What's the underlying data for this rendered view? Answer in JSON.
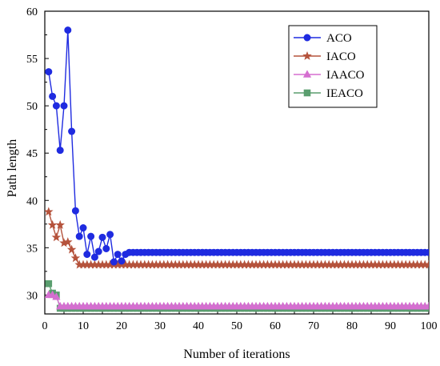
{
  "chart_data": {
    "type": "line",
    "title": "",
    "xlabel": "Number of iterations",
    "ylabel": "Path length",
    "xlim": [
      0,
      100
    ],
    "ylim": [
      28,
      60
    ],
    "xticks": [
      0,
      10,
      20,
      30,
      40,
      50,
      60,
      70,
      80,
      90,
      100
    ],
    "yticks": [
      30,
      35,
      40,
      45,
      50,
      55,
      60
    ],
    "grid": false,
    "legend": "top-right",
    "series": [
      {
        "name": "ACO",
        "color": "#1f2be0",
        "marker": "circle",
        "x": [
          1,
          2,
          3,
          4,
          5,
          6,
          7,
          8,
          9,
          10,
          11,
          12,
          13,
          14,
          15,
          16,
          17,
          18,
          19,
          20,
          21,
          22,
          23,
          24,
          25,
          26,
          27,
          28,
          29,
          30,
          31,
          32,
          33,
          34,
          35,
          36,
          37,
          38,
          39,
          40,
          41,
          42,
          43,
          44,
          45,
          46,
          47,
          48,
          49,
          50,
          51,
          52,
          53,
          54,
          55,
          56,
          57,
          58,
          59,
          60,
          61,
          62,
          63,
          64,
          65,
          66,
          67,
          68,
          69,
          70,
          71,
          72,
          73,
          74,
          75,
          76,
          77,
          78,
          79,
          80,
          81,
          82,
          83,
          84,
          85,
          86,
          87,
          88,
          89,
          90,
          91,
          92,
          93,
          94,
          95,
          96,
          97,
          98,
          99,
          100
        ],
        "y": [
          53.6,
          51.0,
          50.0,
          45.3,
          50.0,
          58.0,
          47.3,
          38.9,
          36.2,
          37.1,
          34.3,
          36.2,
          34.0,
          34.6,
          36.1,
          34.9,
          36.4,
          33.5,
          34.3,
          33.6,
          34.3,
          34.5,
          34.5,
          34.5,
          34.5,
          34.5,
          34.5,
          34.5,
          34.5,
          34.5,
          34.5,
          34.5,
          34.5,
          34.5,
          34.5,
          34.5,
          34.5,
          34.5,
          34.5,
          34.5,
          34.5,
          34.5,
          34.5,
          34.5,
          34.5,
          34.5,
          34.5,
          34.5,
          34.5,
          34.5,
          34.5,
          34.5,
          34.5,
          34.5,
          34.5,
          34.5,
          34.5,
          34.5,
          34.5,
          34.5,
          34.5,
          34.5,
          34.5,
          34.5,
          34.5,
          34.5,
          34.5,
          34.5,
          34.5,
          34.5,
          34.5,
          34.5,
          34.5,
          34.5,
          34.5,
          34.5,
          34.5,
          34.5,
          34.5,
          34.5,
          34.5,
          34.5,
          34.5,
          34.5,
          34.5,
          34.5,
          34.5,
          34.5,
          34.5,
          34.5,
          34.5,
          34.5,
          34.5,
          34.5,
          34.5,
          34.5,
          34.5,
          34.5,
          34.5,
          34.5
        ]
      },
      {
        "name": "IACO",
        "color": "#b5533c",
        "marker": "star",
        "x": [
          1,
          2,
          3,
          4,
          5,
          6,
          7,
          8,
          9,
          10,
          11,
          12,
          13,
          14,
          15,
          16,
          17,
          18,
          19,
          20,
          21,
          22,
          23,
          24,
          25,
          26,
          27,
          28,
          29,
          30,
          31,
          32,
          33,
          34,
          35,
          36,
          37,
          38,
          39,
          40,
          41,
          42,
          43,
          44,
          45,
          46,
          47,
          48,
          49,
          50,
          51,
          52,
          53,
          54,
          55,
          56,
          57,
          58,
          59,
          60,
          61,
          62,
          63,
          64,
          65,
          66,
          67,
          68,
          69,
          70,
          71,
          72,
          73,
          74,
          75,
          76,
          77,
          78,
          79,
          80,
          81,
          82,
          83,
          84,
          85,
          86,
          87,
          88,
          89,
          90,
          91,
          92,
          93,
          94,
          95,
          96,
          97,
          98,
          99,
          100
        ],
        "y": [
          38.8,
          37.4,
          36.1,
          37.4,
          35.5,
          35.6,
          34.8,
          33.9,
          33.2,
          33.2,
          33.2,
          33.2,
          33.2,
          33.2,
          33.2,
          33.2,
          33.2,
          33.2,
          33.2,
          33.2,
          33.2,
          33.2,
          33.2,
          33.2,
          33.2,
          33.2,
          33.2,
          33.2,
          33.2,
          33.2,
          33.2,
          33.2,
          33.2,
          33.2,
          33.2,
          33.2,
          33.2,
          33.2,
          33.2,
          33.2,
          33.2,
          33.2,
          33.2,
          33.2,
          33.2,
          33.2,
          33.2,
          33.2,
          33.2,
          33.2,
          33.2,
          33.2,
          33.2,
          33.2,
          33.2,
          33.2,
          33.2,
          33.2,
          33.2,
          33.2,
          33.2,
          33.2,
          33.2,
          33.2,
          33.2,
          33.2,
          33.2,
          33.2,
          33.2,
          33.2,
          33.2,
          33.2,
          33.2,
          33.2,
          33.2,
          33.2,
          33.2,
          33.2,
          33.2,
          33.2,
          33.2,
          33.2,
          33.2,
          33.2,
          33.2,
          33.2,
          33.2,
          33.2,
          33.2,
          33.2,
          33.2,
          33.2,
          33.2,
          33.2,
          33.2,
          33.2,
          33.2,
          33.2,
          33.2,
          33.2
        ]
      },
      {
        "name": "IAACO",
        "color": "#d56fd0",
        "marker": "triangle",
        "x": [
          1,
          2,
          3,
          4,
          5,
          6,
          7,
          8,
          9,
          10,
          11,
          12,
          13,
          14,
          15,
          16,
          17,
          18,
          19,
          20,
          21,
          22,
          23,
          24,
          25,
          26,
          27,
          28,
          29,
          30,
          31,
          32,
          33,
          34,
          35,
          36,
          37,
          38,
          39,
          40,
          41,
          42,
          43,
          44,
          45,
          46,
          47,
          48,
          49,
          50,
          51,
          52,
          53,
          54,
          55,
          56,
          57,
          58,
          59,
          60,
          61,
          62,
          63,
          64,
          65,
          66,
          67,
          68,
          69,
          70,
          71,
          72,
          73,
          74,
          75,
          76,
          77,
          78,
          79,
          80,
          81,
          82,
          83,
          84,
          85,
          86,
          87,
          88,
          89,
          90,
          91,
          92,
          93,
          94,
          95,
          96,
          97,
          98,
          99,
          100
        ],
        "y": [
          30.0,
          30.0,
          29.8,
          28.8,
          28.8,
          28.8,
          28.8,
          28.8,
          28.8,
          28.8,
          28.8,
          28.8,
          28.8,
          28.8,
          28.8,
          28.8,
          28.8,
          28.8,
          28.8,
          28.8,
          28.8,
          28.8,
          28.8,
          28.8,
          28.8,
          28.8,
          28.8,
          28.8,
          28.8,
          28.8,
          28.8,
          28.8,
          28.8,
          28.8,
          28.8,
          28.8,
          28.8,
          28.8,
          28.8,
          28.8,
          28.8,
          28.8,
          28.8,
          28.8,
          28.8,
          28.8,
          28.8,
          28.8,
          28.8,
          28.8,
          28.8,
          28.8,
          28.8,
          28.8,
          28.8,
          28.8,
          28.8,
          28.8,
          28.8,
          28.8,
          28.8,
          28.8,
          28.8,
          28.8,
          28.8,
          28.8,
          28.8,
          28.8,
          28.8,
          28.8,
          28.8,
          28.8,
          28.8,
          28.8,
          28.8,
          28.8,
          28.8,
          28.8,
          28.8,
          28.8,
          28.8,
          28.8,
          28.8,
          28.8,
          28.8,
          28.8,
          28.8,
          28.8,
          28.8,
          28.8,
          28.8,
          28.8,
          28.8,
          28.8,
          28.8,
          28.8,
          28.8,
          28.8,
          28.8,
          28.8
        ]
      },
      {
        "name": "IEACO",
        "color": "#5a9e6f",
        "marker": "square",
        "x": [
          1,
          2,
          3,
          4,
          5,
          6,
          7,
          8,
          9,
          10,
          11,
          12,
          13,
          14,
          15,
          16,
          17,
          18,
          19,
          20,
          21,
          22,
          23,
          24,
          25,
          26,
          27,
          28,
          29,
          30,
          31,
          32,
          33,
          34,
          35,
          36,
          37,
          38,
          39,
          40,
          41,
          42,
          43,
          44,
          45,
          46,
          47,
          48,
          49,
          50,
          51,
          52,
          53,
          54,
          55,
          56,
          57,
          58,
          59,
          60,
          61,
          62,
          63,
          64,
          65,
          66,
          67,
          68,
          69,
          70,
          71,
          72,
          73,
          74,
          75,
          76,
          77,
          78,
          79,
          80,
          81,
          82,
          83,
          84,
          85,
          86,
          87,
          88,
          89,
          90,
          91,
          92,
          93,
          94,
          95,
          96,
          97,
          98,
          99,
          100
        ],
        "y": [
          31.2,
          30.2,
          30.0,
          28.6,
          28.6,
          28.6,
          28.6,
          28.6,
          28.6,
          28.6,
          28.6,
          28.6,
          28.6,
          28.6,
          28.6,
          28.6,
          28.6,
          28.6,
          28.6,
          28.6,
          28.6,
          28.6,
          28.6,
          28.6,
          28.6,
          28.6,
          28.6,
          28.6,
          28.6,
          28.6,
          28.6,
          28.6,
          28.6,
          28.6,
          28.6,
          28.6,
          28.6,
          28.6,
          28.6,
          28.6,
          28.6,
          28.6,
          28.6,
          28.6,
          28.6,
          28.6,
          28.6,
          28.6,
          28.6,
          28.6,
          28.6,
          28.6,
          28.6,
          28.6,
          28.6,
          28.6,
          28.6,
          28.6,
          28.6,
          28.6,
          28.6,
          28.6,
          28.6,
          28.6,
          28.6,
          28.6,
          28.6,
          28.6,
          28.6,
          28.6,
          28.6,
          28.6,
          28.6,
          28.6,
          28.6,
          28.6,
          28.6,
          28.6,
          28.6,
          28.6,
          28.6,
          28.6,
          28.6,
          28.6,
          28.6,
          28.6,
          28.6,
          28.6,
          28.6,
          28.6,
          28.6,
          28.6,
          28.6,
          28.6,
          28.6,
          28.6,
          28.6,
          28.6,
          28.6,
          28.6
        ]
      }
    ]
  }
}
